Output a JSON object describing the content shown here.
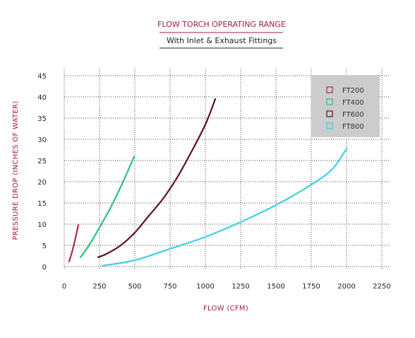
{
  "chart_data": {
    "type": "line",
    "title": "FLOW TORCH OPERATING RANGE",
    "subtitle": "With Inlet & Exhaust Fittings",
    "xlabel": "FLOW (CFM)",
    "ylabel": "PRESSURE DROP (INCHES OF WATER)",
    "xlim": [
      0,
      2250
    ],
    "ylim": [
      0,
      45
    ],
    "x_ticks": [
      0,
      250,
      500,
      750,
      1000,
      1250,
      1500,
      1750,
      2000,
      2250
    ],
    "y_ticks": [
      0,
      5,
      10,
      15,
      20,
      25,
      30,
      35,
      40,
      45
    ],
    "grid": true,
    "legend_position": "top-right",
    "series": [
      {
        "name": "FT200",
        "color": "#b2284a",
        "x": [
          35,
          60,
          80,
          100
        ],
        "y": [
          1.2,
          4.0,
          6.8,
          9.8
        ]
      },
      {
        "name": "FT400",
        "color": "#2dc27a",
        "x": [
          115,
          175,
          250,
          330,
          410,
          495
        ],
        "y": [
          2.2,
          5.0,
          9.2,
          14.0,
          19.5,
          25.9
        ]
      },
      {
        "name": "FT600",
        "color": "#5a0f2e",
        "x": [
          240,
          300,
          400,
          500,
          600,
          700,
          800,
          900,
          1000,
          1070
        ],
        "y": [
          2.2,
          3.0,
          5.0,
          8.0,
          12.0,
          16.0,
          21.0,
          27.0,
          33.5,
          39.5
        ]
      },
      {
        "name": "FT800",
        "color": "#3fd0e6",
        "x": [
          270,
          500,
          750,
          1000,
          1250,
          1500,
          1750,
          1900,
          2000
        ],
        "y": [
          0.2,
          1.5,
          4.2,
          7.0,
          10.5,
          14.5,
          19.3,
          23.0,
          27.8
        ]
      }
    ]
  }
}
